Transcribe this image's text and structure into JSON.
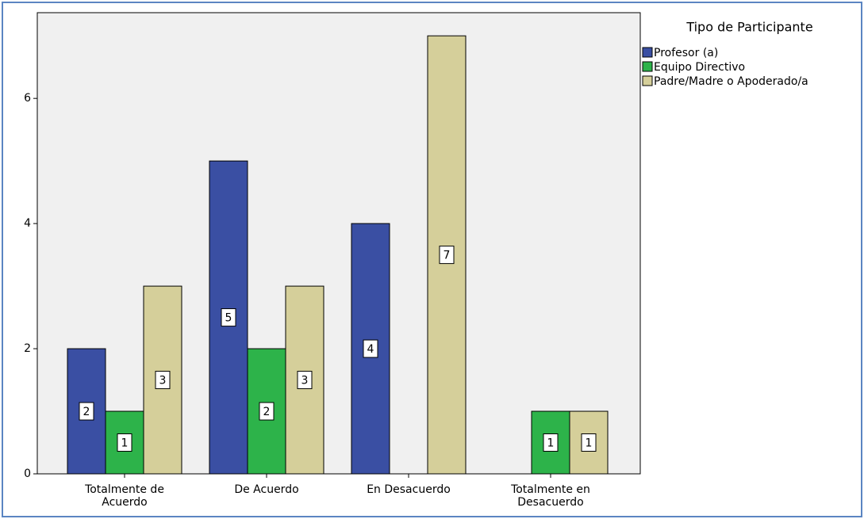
{
  "chart_data": {
    "type": "bar",
    "categories": [
      "Totalmente de Acuerdo",
      "De Acuerdo",
      "En Desacuerdo",
      "Totalmente en Desacuerdo"
    ],
    "series": [
      {
        "name": "Profesor (a)",
        "color": "#3a4fa3",
        "values": [
          2,
          5,
          4,
          null
        ]
      },
      {
        "name": "Equipo Directivo",
        "color": "#2db34a",
        "values": [
          1,
          2,
          null,
          1
        ]
      },
      {
        "name": "Padre/Madre o Apoderado/a",
        "color": "#d5cf9a",
        "values": [
          3,
          3,
          7,
          1
        ]
      }
    ],
    "legend_title": "Tipo de Participante",
    "legend_position": "right",
    "ylim": [
      0,
      7.37
    ],
    "yticks": [
      0,
      2,
      4,
      6
    ],
    "grid": false
  }
}
